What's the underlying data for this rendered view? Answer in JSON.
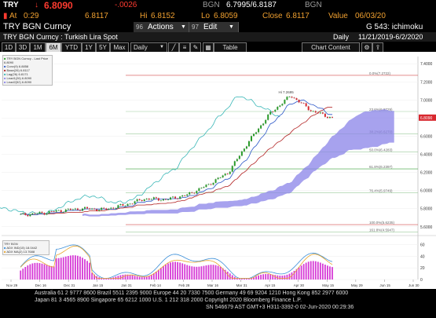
{
  "top": {
    "ticker": "TRY",
    "arrow": "↓",
    "price": "6.8090",
    "change": "-.0026",
    "bgn_label": "BGN",
    "bgn_value": "6.7995/6.8187",
    "bgn_label2": "BGN",
    "at_label": "At",
    "at_value": "0:29",
    "op_value": "6.8117",
    "hi_label": "Hi",
    "hi_value": "6.8152",
    "lo_label": "Lo",
    "lo_value": "6.8059",
    "close_label": "Close",
    "close_value": "6.8117",
    "value_label": "Value",
    "value_date": "06/03/20"
  },
  "toolbar": {
    "title": "TRY BGN Curncy",
    "actions_num": "96",
    "actions_label": "Actions",
    "edit_num": "97",
    "edit_label": "Edit",
    "right_label": "G 543: ichimoku"
  },
  "info": {
    "description": "TRY BGN Curncy : Turkish Lira Spot",
    "period": "Daily",
    "range": "11/21/2019-6/2/2020"
  },
  "tabs": {
    "items": [
      "1D",
      "3D",
      "1M",
      "6M",
      "YTD",
      "1Y",
      "5Y",
      "Max"
    ],
    "selected": "6M",
    "interval": "Daily",
    "table_label": "Table",
    "chart_content_label": "Chart Content"
  },
  "footer": {
    "line1": "Australia 61 2 9777 8600 Brazil 5511 2395 9000 Europe 44 20 7330 7500 Germany 49 69 9204 1210 Hong Kong 852 2977 6000",
    "line2": "Japan 81 3 4565 8900          Singapore 65 6212 1000          U.S. 1 212 318 2000          Copyright 2020 Bloomberg Finance L.P.",
    "line3": "SN 546679 AST  GMT+3 H311-3392-0 02-Jun-2020 00:29:36"
  },
  "chart_data": {
    "type": "line",
    "title": "",
    "x": [
      "Nov 29",
      "Dec 16",
      "Dec 31",
      "Jan 15",
      "Jan 31",
      "Feb 14",
      "Feb 28",
      "Mar 16",
      "Mar 31",
      "Apr 15",
      "Apr 30",
      "May 15",
      "May 29",
      "Jun 15",
      "Jun 30"
    ],
    "x_year_labels": [
      "2019",
      "2020"
    ],
    "price_candles_close": [
      5.73,
      5.75,
      5.78,
      5.8,
      5.79,
      5.84,
      5.91,
      5.9,
      5.95,
      6.06,
      6.2,
      6.55,
      6.85,
      7.05,
      6.88,
      6.8
    ],
    "legend": [
      "TRY BGN Curncy - Last Price 6.8090",
      "Conv(9)",
      "Base(26)",
      "Lag(26)",
      "Lead1(26)",
      "Lead2(52)"
    ],
    "legend_values": [
      "6.8090",
      "6.8858",
      "6.8117",
      "6.8171",
      "6.8090"
    ],
    "price_axis_ticks": [
      "7.4000",
      "7.2000",
      "7.0000",
      "6.8000",
      "6.6000",
      "6.4000",
      "6.2000",
      "6.0000",
      "5.8000",
      "5.6000"
    ],
    "last_price_tag": "6.8090",
    "peak_label": "Hi 7.2695",
    "fib_levels": [
      {
        "label": "0.0%(7.2722)",
        "value": 7.2722
      },
      {
        "label": "23.6%(6.8729)",
        "value": 6.8729
      },
      {
        "label": "38.2%(6.6270)",
        "value": 6.627
      },
      {
        "label": "50.0%(6.4283)",
        "value": 6.4283
      },
      {
        "label": "61.8%(6.2397)",
        "value": 6.2397
      },
      {
        "label": "76.4%(5.9749)",
        "value": 5.9749
      },
      {
        "label": "100.0%(5.6235)",
        "value": 5.6235
      },
      {
        "label": "161.8%(4.5947)",
        "value": 4.5947
      }
    ],
    "lower_panel": {
      "legend": [
        "TRY BGN",
        "ADX IND(15) 18.0442",
        "ADX MA(2) 13.7688"
      ],
      "axis_ticks": [
        "60",
        "40",
        "20",
        "0"
      ],
      "colors": {
        "bars": "#d63ad6",
        "line1": "#3b8fd8",
        "line2": "#e8a630"
      }
    },
    "colors": {
      "candles_up": "#2a9b2a",
      "candles_down": "#d8282f",
      "cloud": "#8a83e8",
      "conv": "#2a56c8",
      "base": "#b22222",
      "lag": "#3ab7b7"
    }
  }
}
